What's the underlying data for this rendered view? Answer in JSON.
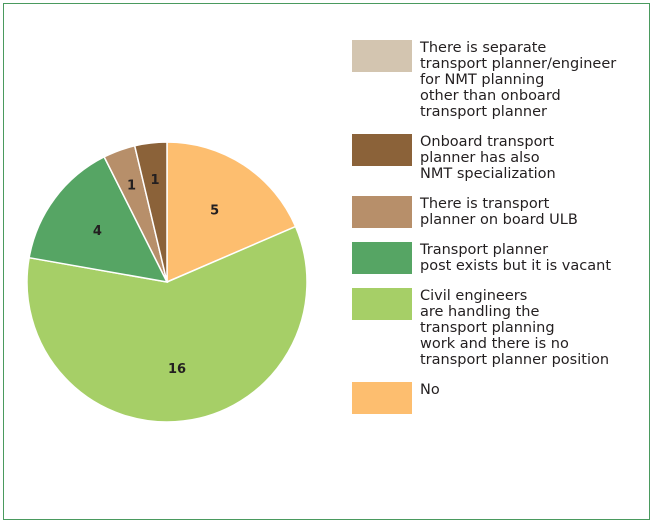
{
  "chart_data": {
    "type": "pie",
    "title": "",
    "legend_position": "right",
    "slices": [
      {
        "label": "No",
        "value": 5,
        "color": "#fdbe6f"
      },
      {
        "label": "Civil engineers\nare handling the\ntransport planning\nwork and there is no\ntransport planner position",
        "value": 16,
        "color": "#a6cf67"
      },
      {
        "label": "Transport planner\npost exists but it is vacant",
        "value": 4,
        "color": "#56a564"
      },
      {
        "label": "There is transport\nplanner on board ULB",
        "value": 1,
        "color": "#b78f6a"
      },
      {
        "label": "Onboard transport\nplanner has also\nNMT specialization",
        "value": 1,
        "color": "#8b6239"
      },
      {
        "label": "There is separate\ntransport planner/engineer\nfor NMT planning\nother than onboard\ntransport planner",
        "value": 0,
        "color": "#d3c5b0"
      }
    ]
  }
}
